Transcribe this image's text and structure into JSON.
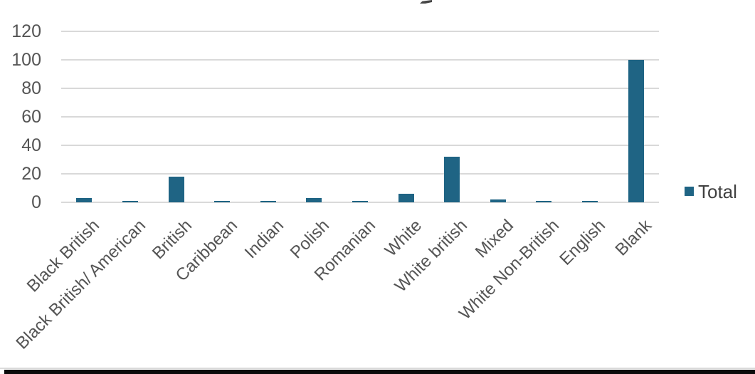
{
  "page": {
    "background_color": "#ffffff",
    "artifacts": {
      "clipped_title_fragment": "partial glyph of chart title cut off at top edge",
      "bottom_window_edge_color": "#0b0b0b"
    }
  },
  "chart_data": {
    "type": "bar",
    "title": "",
    "categories": [
      "Black British",
      "Black British/ American",
      "British",
      "Caribbean",
      "Indian",
      "Polish",
      "Romanian",
      "White",
      "White british",
      "Mixed",
      "White Non-British",
      "English",
      "Blank"
    ],
    "series": [
      {
        "name": "Total",
        "values": [
          3,
          1,
          18,
          1,
          1,
          3,
          1,
          6,
          32,
          2,
          1,
          1,
          100
        ]
      }
    ],
    "ylim": [
      0,
      120
    ],
    "yticks": [
      0,
      20,
      40,
      60,
      80,
      100,
      120
    ],
    "xlabel": "",
    "ylabel": "",
    "grid": true,
    "legend_position": "right",
    "legend_label": "Total",
    "bar_color": "#1f6484",
    "gridline_color": "#d9d9d9",
    "axis_text_color": "#555555",
    "legend_text_color": "#404040"
  }
}
